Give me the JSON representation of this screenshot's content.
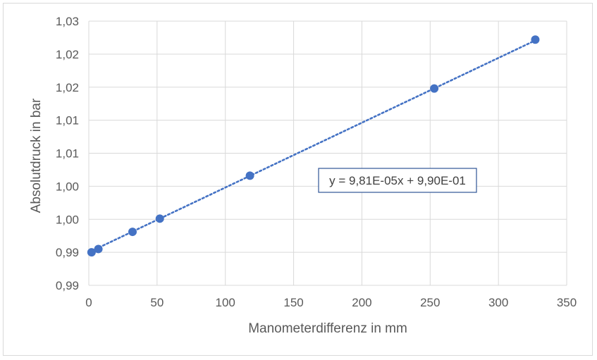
{
  "chart_data": {
    "type": "scatter",
    "xlabel": "Manometerdifferenz in mm",
    "ylabel": "Absolutdruck in bar",
    "xlim": [
      0,
      350
    ],
    "ylim": [
      0.985,
      1.025
    ],
    "x_ticks": [
      0,
      50,
      100,
      150,
      200,
      250,
      300,
      350
    ],
    "x_tick_labels": [
      "0",
      "50",
      "100",
      "150",
      "200",
      "250",
      "300",
      "350"
    ],
    "y_ticks": [
      0.985,
      0.99,
      0.995,
      1.0,
      1.005,
      1.01,
      1.015,
      1.02,
      1.025
    ],
    "y_tick_labels": [
      "0,99",
      "0,99",
      "1,00",
      "1,00",
      "1,01",
      "1,01",
      "1,02",
      "1,02",
      "1,03"
    ],
    "grid": true,
    "series": [
      {
        "color": "#4472c4",
        "points": [
          {
            "x": 2,
            "y": 0.99
          },
          {
            "x": 7,
            "y": 0.9905
          },
          {
            "x": 32,
            "y": 0.9931
          },
          {
            "x": 52,
            "y": 0.9951
          },
          {
            "x": 118,
            "y": 1.0016
          },
          {
            "x": 253,
            "y": 1.0148
          },
          {
            "x": 327,
            "y": 1.0222
          }
        ]
      }
    ],
    "trendline": {
      "type": "linear",
      "style": "dotted",
      "color": "#4472c4",
      "slope": 9.81e-05,
      "intercept": 0.99,
      "x_range": [
        2,
        327
      ],
      "equation_label": "y = 9,81E-05x + 9,90E-01"
    }
  }
}
